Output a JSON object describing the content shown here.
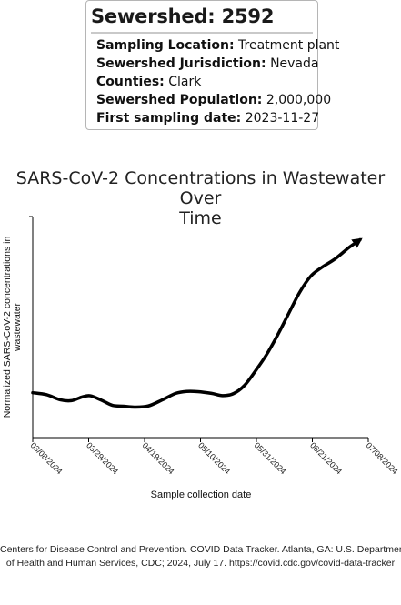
{
  "card": {
    "title": "Sewershed: 2592",
    "rows": [
      {
        "label": "Sampling Location:",
        "value": "Treatment plant"
      },
      {
        "label": "Sewershed Jurisdiction:",
        "value": "Nevada"
      },
      {
        "label": "Counties:",
        "value": "Clark"
      },
      {
        "label": "Sewershed Population:",
        "value": "2,000,000"
      },
      {
        "label": "First sampling date:",
        "value": "2023-11-27"
      }
    ]
  },
  "chart_data": {
    "type": "line",
    "title_lines": [
      "SARS-CoV-2 Concentrations in Wastewater Over",
      "Time"
    ],
    "xlabel": "Sample collection date",
    "ylabel_lines": [
      "Normalized SARS-CoV-2 concentrations in",
      "wastewater"
    ],
    "x_ticks": [
      "03/08/2024",
      "03/29/2024",
      "04/19/2024",
      "05/10/2024",
      "05/31/2024",
      "06/21/2024",
      "07/08/2024"
    ],
    "y_axis_ticks_shown": false,
    "grid": false,
    "series": [
      {
        "x": [
          "2024-03-08",
          "2024-03-13",
          "2024-03-18",
          "2024-03-22",
          "2024-03-26",
          "2024-03-29",
          "2024-04-02",
          "2024-04-06",
          "2024-04-10",
          "2024-04-14",
          "2024-04-19",
          "2024-04-24",
          "2024-04-29",
          "2024-05-03",
          "2024-05-07",
          "2024-05-12",
          "2024-05-16",
          "2024-05-20",
          "2024-05-24",
          "2024-05-28",
          "2024-06-01",
          "2024-06-05",
          "2024-06-09",
          "2024-06-13",
          "2024-06-17",
          "2024-06-21",
          "2024-06-26",
          "2024-07-01",
          "2024-07-05"
        ],
        "y": [
          0.203,
          0.194,
          0.171,
          0.167,
          0.184,
          0.189,
          0.169,
          0.146,
          0.142,
          0.138,
          0.143,
          0.17,
          0.2,
          0.209,
          0.208,
          0.2,
          0.19,
          0.199,
          0.236,
          0.302,
          0.375,
          0.463,
          0.56,
          0.656,
          0.729,
          0.769,
          0.809,
          0.86,
          0.895
        ],
        "arrow_end": true
      }
    ],
    "xlim": [
      "2024-03-08",
      "2024-07-08"
    ],
    "ylim": [
      0,
      1
    ]
  },
  "caption": {
    "line1": "Centers for Disease Control and Prevention. COVID Data Tracker. Atlanta, GA: U.S. Department",
    "line2": "of Health and Human Services, CDC; 2024, July 17. https://covid.cdc.gov/covid-data-tracker"
  }
}
